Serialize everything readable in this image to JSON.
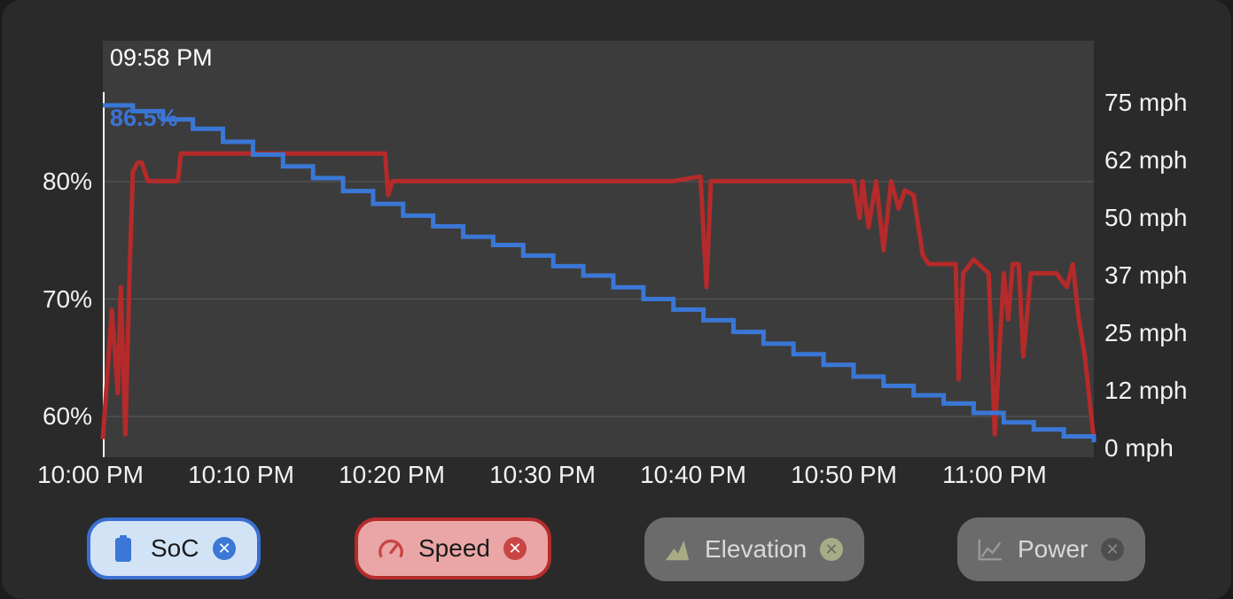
{
  "cursor_time": "09:58 PM",
  "cursor_readout": "86.5%",
  "colors": {
    "soc": "#3a77d6",
    "speed": "#b52a2a",
    "plot_bg": "#3c3c3c"
  },
  "chart_data": {
    "type": "line",
    "x_ticks": [
      "10:00 PM",
      "10:10 PM",
      "10:20 PM",
      "10:30 PM",
      "10:40 PM",
      "10:50 PM",
      "11:00 PM"
    ],
    "x_range_minutes_from_10pm": [
      0,
      66
    ],
    "y_left_ticks": [
      "80%",
      "70%",
      "60%"
    ],
    "y_left_range": [
      57.5,
      90
    ],
    "y_right_ticks": [
      "75 mph",
      "62 mph",
      "50 mph",
      "37 mph",
      "25 mph",
      "12 mph",
      "0 mph"
    ],
    "y_right_range": [
      0,
      75
    ],
    "grid": "horizontal",
    "series": [
      {
        "name": "SoC",
        "axis": "left",
        "x": [
          0,
          2,
          4,
          6,
          8,
          10,
          12,
          14,
          16,
          18,
          20,
          22,
          24,
          26,
          28,
          30,
          32,
          34,
          36,
          38,
          40,
          42,
          44,
          46,
          48,
          50,
          52,
          54,
          56,
          58,
          60,
          62,
          64,
          66
        ],
        "values": [
          86.5,
          86.0,
          85.3,
          84.5,
          83.4,
          82.3,
          81.3,
          80.3,
          79.2,
          78.1,
          77.1,
          76.2,
          75.3,
          74.6,
          73.7,
          72.8,
          72.0,
          71.0,
          70.0,
          69.1,
          68.2,
          67.2,
          66.2,
          65.3,
          64.4,
          63.4,
          62.6,
          61.8,
          61.1,
          60.3,
          59.5,
          58.9,
          58.3,
          57.8
        ]
      },
      {
        "name": "Speed",
        "axis": "right",
        "x": [
          0,
          0.6,
          1.0,
          1.2,
          1.5,
          1.8,
          2.0,
          2.3,
          2.6,
          3.0,
          3.5,
          4.0,
          4.5,
          5.0,
          5.2,
          5.5,
          6.0,
          8.0,
          10.0,
          12.0,
          14.0,
          16.0,
          18.0,
          18.8,
          19.0,
          19.3,
          22.0,
          26.0,
          30.0,
          34.0,
          38.0,
          39.8,
          40.2,
          40.5,
          40.8,
          45.0,
          50.0,
          50.4,
          50.6,
          51.0,
          51.5,
          52.0,
          52.5,
          53.0,
          53.4,
          54.0,
          54.6,
          55.0,
          55.5,
          56.0,
          56.8,
          57.0,
          57.3,
          58.0,
          59.0,
          59.4,
          60.0,
          60.3,
          60.6,
          61.0,
          61.3,
          61.8,
          62.5,
          63.5,
          64.2,
          64.6,
          65.0,
          65.4,
          65.8,
          66.0
        ],
        "values": [
          2,
          30,
          12,
          35,
          3,
          40,
          60,
          62,
          62,
          58,
          58,
          58,
          58,
          58,
          64,
          64,
          64,
          64,
          64,
          64,
          64,
          64,
          64,
          64,
          55,
          58,
          58,
          58,
          58,
          58,
          58,
          59,
          35,
          58,
          58,
          58,
          58,
          50,
          58,
          48,
          58,
          43,
          58,
          52,
          56,
          55,
          42,
          40,
          40,
          40,
          40,
          15,
          38,
          41,
          38,
          3,
          38,
          28,
          40,
          40,
          20,
          38,
          38,
          38,
          35,
          40,
          28,
          20,
          8,
          2
        ]
      }
    ]
  },
  "legend": [
    {
      "label": "SoC",
      "icon": "battery-icon",
      "state": "active"
    },
    {
      "label": "Speed",
      "icon": "speedometer-icon",
      "state": "active"
    },
    {
      "label": "Elevation",
      "icon": "mountain-icon",
      "state": "inactive"
    },
    {
      "label": "Power",
      "icon": "line-graph-icon",
      "state": "inactive"
    }
  ]
}
